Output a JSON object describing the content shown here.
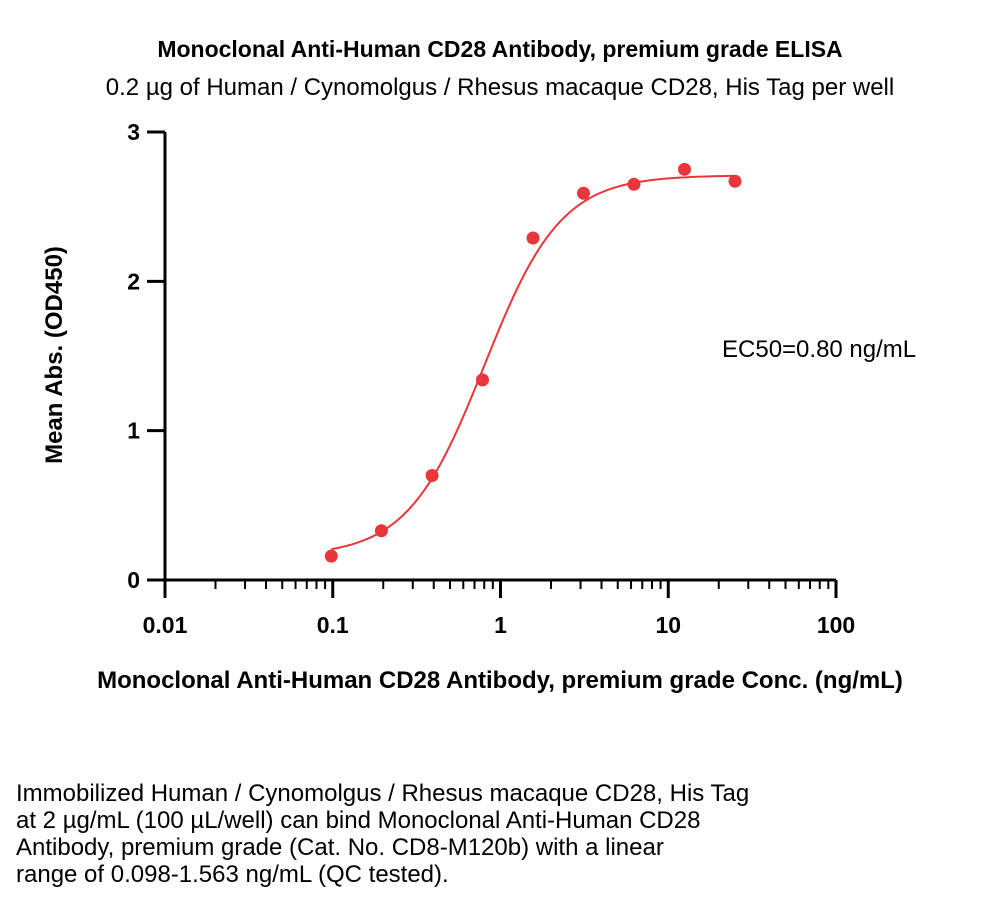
{
  "chart_data": {
    "type": "scatter",
    "title": "Monoclonal Anti-Human CD28 Antibody, premium grade ELISA",
    "subtitle": "0.2 µg of Human / Cynomolgus / Rhesus macaque CD28, His Tag per well",
    "xlabel": "Monoclonal Anti-Human CD28 Antibody, premium grade Conc. (ng/mL)",
    "ylabel": "Mean Abs. (OD450)",
    "xscale": "log",
    "xlim": [
      0.01,
      100
    ],
    "ylim": [
      0,
      3
    ],
    "xticks": [
      0.01,
      0.1,
      1,
      10,
      100
    ],
    "xtick_labels": [
      "0.01",
      "0.1",
      "1",
      "10",
      "100"
    ],
    "yticks": [
      0,
      1,
      2,
      3
    ],
    "ytick_labels": [
      "0",
      "1",
      "2",
      "3"
    ],
    "series": [
      {
        "name": "Mean Abs.",
        "color": "#e8363a",
        "x": [
          0.098,
          0.195,
          0.391,
          0.781,
          1.563,
          3.125,
          6.25,
          12.5,
          25
        ],
        "y": [
          0.16,
          0.33,
          0.7,
          1.34,
          2.29,
          2.59,
          2.65,
          2.75,
          2.67
        ]
      }
    ],
    "fit": {
      "type": "4PL",
      "bottom": 0.16,
      "top": 2.71,
      "ec50": 0.8,
      "hill": 1.9,
      "color": "#e8363a"
    },
    "annotation": "EC50=0.80 ng/mL"
  },
  "caption_lines": [
    "Immobilized Human / Cynomolgus / Rhesus macaque CD28, His Tag",
    "at 2 µg/mL (100 µL/well) can bind Monoclonal Anti-Human CD28",
    "Antibody, premium grade (Cat. No. CD8-M120b) with a linear",
    "range of 0.098-1.563 ng/mL (QC tested)."
  ]
}
